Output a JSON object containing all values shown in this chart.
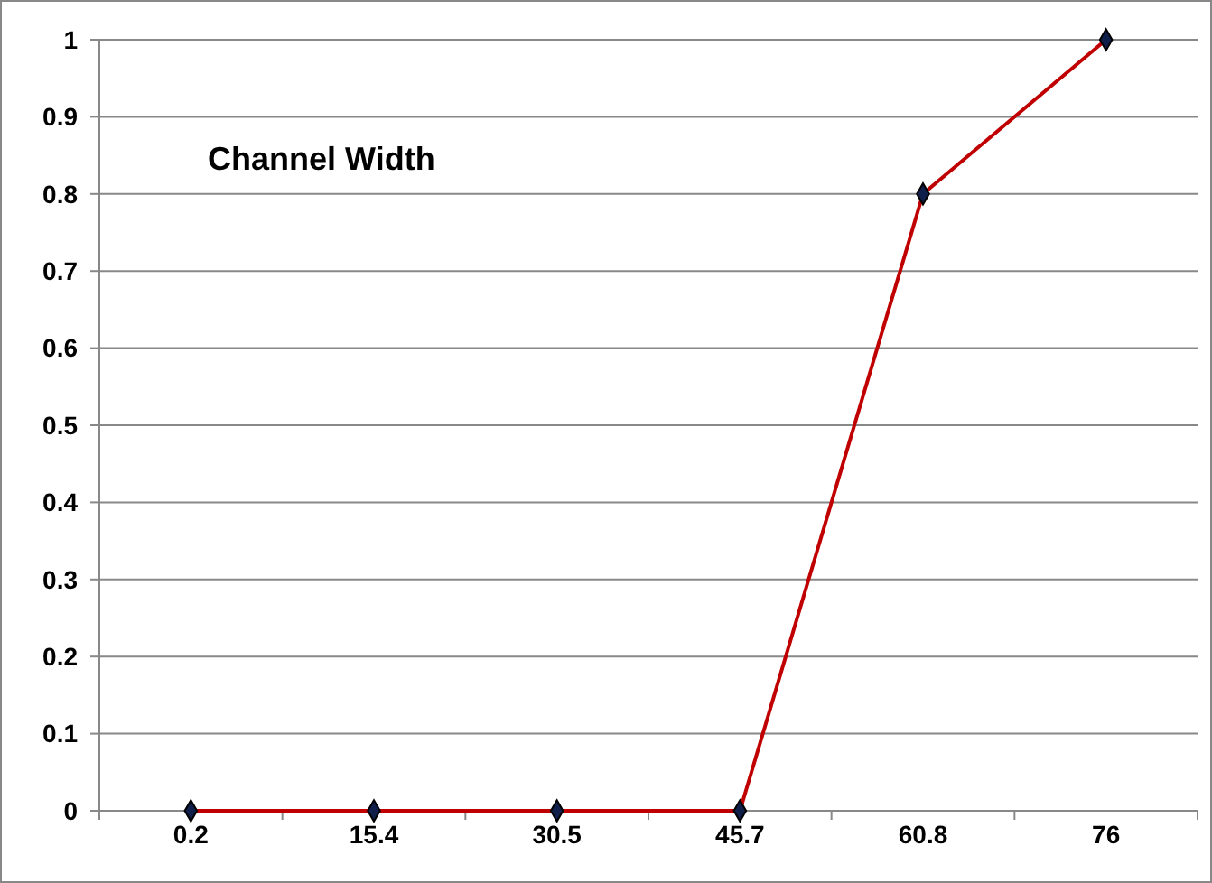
{
  "chart_data": {
    "type": "line",
    "title": "Channel Width",
    "categories": [
      "0.2",
      "15.4",
      "30.5",
      "45.7",
      "60.8",
      "76"
    ],
    "series": [
      {
        "color": "#c00000",
        "values": [
          0,
          0,
          0,
          0,
          0.8,
          1
        ]
      }
    ],
    "ylim": [
      0,
      1
    ],
    "yticks": [
      0,
      0.1,
      0.2,
      0.3,
      0.4,
      0.5,
      0.6,
      0.7,
      0.8,
      0.9,
      1
    ],
    "grid": "y",
    "marker": "diamond",
    "line_style": "solid"
  }
}
